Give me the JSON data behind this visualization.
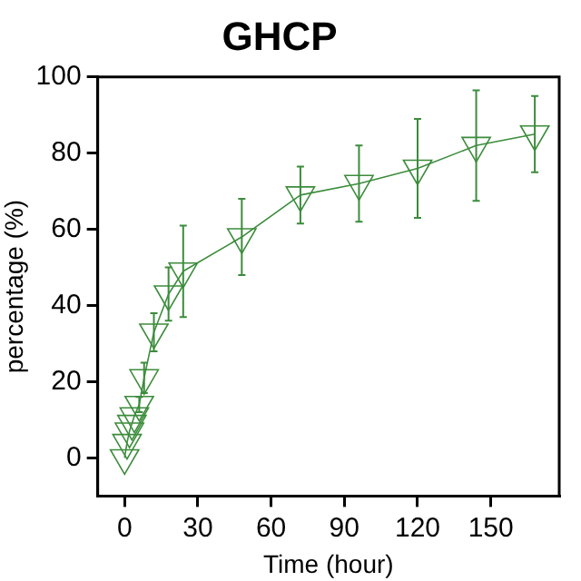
{
  "chart_data": {
    "type": "line",
    "title": "GHCP",
    "xlabel": "Time (hour)",
    "ylabel": "percentage (%)",
    "x": [
      0,
      1,
      2,
      3,
      4,
      6,
      8,
      12,
      18,
      24,
      48,
      72,
      96,
      120,
      144,
      168
    ],
    "series": [
      {
        "color": "#3c8c3c",
        "values": [
          0,
          4,
          7,
          9,
          11,
          14,
          21,
          33,
          43,
          49,
          58,
          69,
          72,
          76,
          82,
          85
        ],
        "errors": [
          null,
          null,
          null,
          null,
          null,
          2,
          4,
          5,
          7,
          12,
          10,
          7.5,
          10,
          13,
          14.5,
          10
        ]
      }
    ],
    "xlim": [
      -11,
      178
    ],
    "xticks": [
      0,
      30,
      60,
      90,
      120,
      150
    ],
    "ylim": [
      -10,
      100
    ],
    "yticks": [
      0,
      20,
      40,
      60,
      80,
      100
    ],
    "grid": false,
    "legend": false,
    "marker": "triangle",
    "line_style": "solid"
  }
}
